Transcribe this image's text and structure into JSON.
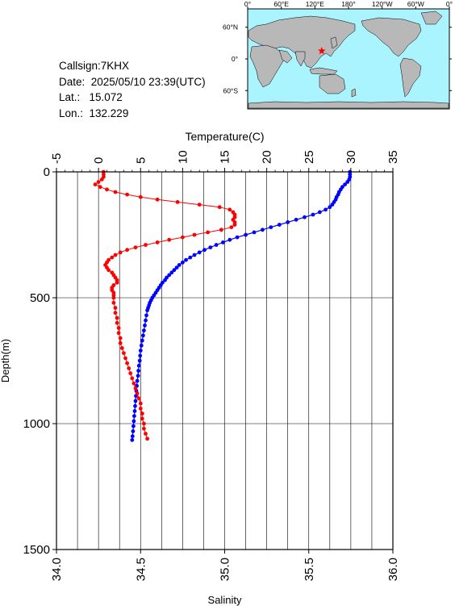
{
  "info": {
    "callsign": "Callsign:7KHX",
    "date": "Date:  2025/05/10 23:39(UTC)",
    "lat": "Lat.:   15.072",
    "lon": "Lon.:  132.229"
  },
  "map": {
    "lon_labels": [
      "0°",
      "60°E",
      "120°E",
      "180°",
      "120°W",
      "60°W",
      "0°"
    ],
    "lat_labels": [
      "60°N",
      "0°",
      "60°S"
    ],
    "station": {
      "lat": 15.072,
      "lon": 132.229
    },
    "colors": {
      "ocean": "#aaf4ff",
      "land": "#b8b8b8",
      "marker": "#ff0000"
    }
  },
  "chart_data": {
    "type": "line",
    "y": {
      "label": "Depth(m)",
      "range": [
        0,
        1500
      ],
      "ticks": [
        0,
        500,
        1000,
        1500
      ]
    },
    "x_top": {
      "label": "Temperature(C)",
      "range": [
        -5,
        35
      ],
      "ticks": [
        -5,
        0,
        5,
        10,
        15,
        20,
        25,
        30,
        35
      ]
    },
    "x_bottom": {
      "label": "Salinity",
      "range": [
        34.0,
        36.0
      ],
      "ticks": [
        "34.0",
        "34.5",
        "35.0",
        "35.5",
        "36.0"
      ]
    },
    "grid": true,
    "series": [
      {
        "name": "Temperature",
        "axis": "top",
        "color": "#0000ff",
        "points": [
          [
            29.9,
            0
          ],
          [
            29.9,
            10
          ],
          [
            29.9,
            20
          ],
          [
            29.8,
            30
          ],
          [
            29.6,
            40
          ],
          [
            29.3,
            50
          ],
          [
            29.0,
            60
          ],
          [
            28.8,
            70
          ],
          [
            28.6,
            80
          ],
          [
            28.5,
            90
          ],
          [
            28.3,
            100
          ],
          [
            28.2,
            110
          ],
          [
            28.0,
            120
          ],
          [
            27.8,
            130
          ],
          [
            27.5,
            140
          ],
          [
            27.0,
            150
          ],
          [
            26.3,
            160
          ],
          [
            25.5,
            170
          ],
          [
            24.5,
            180
          ],
          [
            23.5,
            190
          ],
          [
            22.5,
            200
          ],
          [
            21.5,
            210
          ],
          [
            20.5,
            220
          ],
          [
            19.5,
            230
          ],
          [
            18.5,
            240
          ],
          [
            17.5,
            250
          ],
          [
            16.5,
            260
          ],
          [
            15.6,
            270
          ],
          [
            14.8,
            280
          ],
          [
            14.0,
            290
          ],
          [
            13.3,
            300
          ],
          [
            12.6,
            310
          ],
          [
            12.0,
            320
          ],
          [
            11.4,
            330
          ],
          [
            10.9,
            340
          ],
          [
            10.4,
            350
          ],
          [
            10.0,
            360
          ],
          [
            9.6,
            370
          ],
          [
            9.3,
            380
          ],
          [
            9.0,
            390
          ],
          [
            8.7,
            400
          ],
          [
            8.4,
            410
          ],
          [
            8.1,
            420
          ],
          [
            7.9,
            430
          ],
          [
            7.6,
            440
          ],
          [
            7.4,
            450
          ],
          [
            7.2,
            460
          ],
          [
            7.0,
            470
          ],
          [
            6.8,
            480
          ],
          [
            6.6,
            490
          ],
          [
            6.4,
            500
          ],
          [
            6.25,
            510
          ],
          [
            6.1,
            520
          ],
          [
            6.0,
            530
          ],
          [
            5.9,
            540
          ],
          [
            5.8,
            550
          ],
          [
            5.7,
            570
          ],
          [
            5.6,
            590
          ],
          [
            5.5,
            610
          ],
          [
            5.4,
            630
          ],
          [
            5.3,
            650
          ],
          [
            5.2,
            670
          ],
          [
            5.1,
            690
          ],
          [
            5.0,
            710
          ],
          [
            4.95,
            730
          ],
          [
            4.9,
            750
          ],
          [
            4.8,
            770
          ],
          [
            4.75,
            790
          ],
          [
            4.7,
            810
          ],
          [
            4.6,
            830
          ],
          [
            4.55,
            850
          ],
          [
            4.5,
            870
          ],
          [
            4.45,
            890
          ],
          [
            4.4,
            910
          ],
          [
            4.35,
            930
          ],
          [
            4.3,
            950
          ],
          [
            4.25,
            970
          ],
          [
            4.2,
            990
          ],
          [
            4.15,
            1010
          ],
          [
            4.1,
            1030
          ],
          [
            4.05,
            1050
          ],
          [
            4.0,
            1065
          ]
        ]
      },
      {
        "name": "Salinity",
        "axis": "bottom",
        "color": "#ff0000",
        "points": [
          [
            34.28,
            0
          ],
          [
            34.28,
            10
          ],
          [
            34.28,
            20
          ],
          [
            34.27,
            30
          ],
          [
            34.25,
            40
          ],
          [
            34.23,
            50
          ],
          [
            34.26,
            60
          ],
          [
            34.3,
            70
          ],
          [
            34.35,
            80
          ],
          [
            34.42,
            90
          ],
          [
            34.5,
            100
          ],
          [
            34.6,
            110
          ],
          [
            34.72,
            120
          ],
          [
            34.85,
            130
          ],
          [
            34.97,
            140
          ],
          [
            35.03,
            150
          ],
          [
            35.05,
            160
          ],
          [
            35.06,
            170
          ],
          [
            35.06,
            180
          ],
          [
            35.05,
            190
          ],
          [
            35.06,
            200
          ],
          [
            35.06,
            210
          ],
          [
            35.04,
            220
          ],
          [
            34.98,
            230
          ],
          [
            34.9,
            240
          ],
          [
            34.82,
            250
          ],
          [
            34.75,
            260
          ],
          [
            34.67,
            270
          ],
          [
            34.6,
            280
          ],
          [
            34.53,
            290
          ],
          [
            34.47,
            300
          ],
          [
            34.42,
            310
          ],
          [
            34.38,
            320
          ],
          [
            34.35,
            330
          ],
          [
            34.33,
            340
          ],
          [
            34.31,
            350
          ],
          [
            34.3,
            360
          ],
          [
            34.29,
            370
          ],
          [
            34.3,
            380
          ],
          [
            34.31,
            390
          ],
          [
            34.33,
            400
          ],
          [
            34.34,
            410
          ],
          [
            34.35,
            420
          ],
          [
            34.36,
            430
          ],
          [
            34.36,
            440
          ],
          [
            34.34,
            450
          ],
          [
            34.33,
            460
          ],
          [
            34.33,
            470
          ],
          [
            34.34,
            480
          ],
          [
            34.34,
            490
          ],
          [
            34.34,
            500
          ],
          [
            34.34,
            520
          ],
          [
            34.35,
            540
          ],
          [
            34.35,
            560
          ],
          [
            34.36,
            580
          ],
          [
            34.36,
            600
          ],
          [
            34.37,
            620
          ],
          [
            34.37,
            640
          ],
          [
            34.38,
            660
          ],
          [
            34.38,
            680
          ],
          [
            34.39,
            700
          ],
          [
            34.4,
            720
          ],
          [
            34.41,
            740
          ],
          [
            34.42,
            760
          ],
          [
            34.43,
            780
          ],
          [
            34.44,
            800
          ],
          [
            34.45,
            820
          ],
          [
            34.46,
            840
          ],
          [
            34.47,
            860
          ],
          [
            34.48,
            880
          ],
          [
            34.49,
            900
          ],
          [
            34.5,
            920
          ],
          [
            34.5,
            940
          ],
          [
            34.51,
            960
          ],
          [
            34.51,
            980
          ],
          [
            34.52,
            1000
          ],
          [
            34.52,
            1020
          ],
          [
            34.53,
            1040
          ],
          [
            34.54,
            1060
          ]
        ]
      }
    ]
  }
}
